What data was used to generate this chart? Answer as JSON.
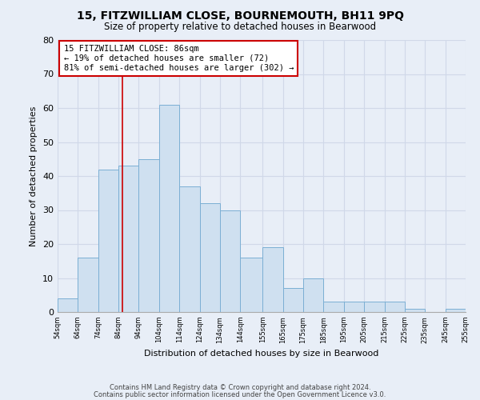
{
  "title1": "15, FITZWILLIAM CLOSE, BOURNEMOUTH, BH11 9PQ",
  "title2": "Size of property relative to detached houses in Bearwood",
  "xlabel": "Distribution of detached houses by size in Bearwood",
  "ylabel": "Number of detached properties",
  "bar_color": "#cfe0f0",
  "bar_edge_color": "#7bafd4",
  "bin_edges": [
    54,
    64,
    74,
    84,
    94,
    104,
    114,
    124,
    134,
    144,
    155,
    165,
    175,
    185,
    195,
    205,
    215,
    225,
    235,
    245,
    255
  ],
  "counts": [
    4,
    16,
    42,
    43,
    45,
    61,
    37,
    32,
    30,
    16,
    19,
    7,
    10,
    3,
    3,
    3,
    3,
    1,
    0,
    1
  ],
  "tick_labels": [
    "54sqm",
    "64sqm",
    "74sqm",
    "84sqm",
    "94sqm",
    "104sqm",
    "114sqm",
    "124sqm",
    "134sqm",
    "144sqm",
    "155sqm",
    "165sqm",
    "175sqm",
    "185sqm",
    "195sqm",
    "205sqm",
    "215sqm",
    "225sqm",
    "235sqm",
    "245sqm",
    "255sqm"
  ],
  "vline_x": 86,
  "vline_color": "#cc0000",
  "ylim": [
    0,
    80
  ],
  "yticks": [
    0,
    10,
    20,
    30,
    40,
    50,
    60,
    70,
    80
  ],
  "annotation_text": "15 FITZWILLIAM CLOSE: 86sqm\n← 19% of detached houses are smaller (72)\n81% of semi-detached houses are larger (302) →",
  "annotation_box_color": "#ffffff",
  "annotation_box_edge": "#cc0000",
  "footer1": "Contains HM Land Registry data © Crown copyright and database right 2024.",
  "footer2": "Contains public sector information licensed under the Open Government Licence v3.0.",
  "bg_color": "#e8eef7",
  "grid_color": "#d0d8e8"
}
